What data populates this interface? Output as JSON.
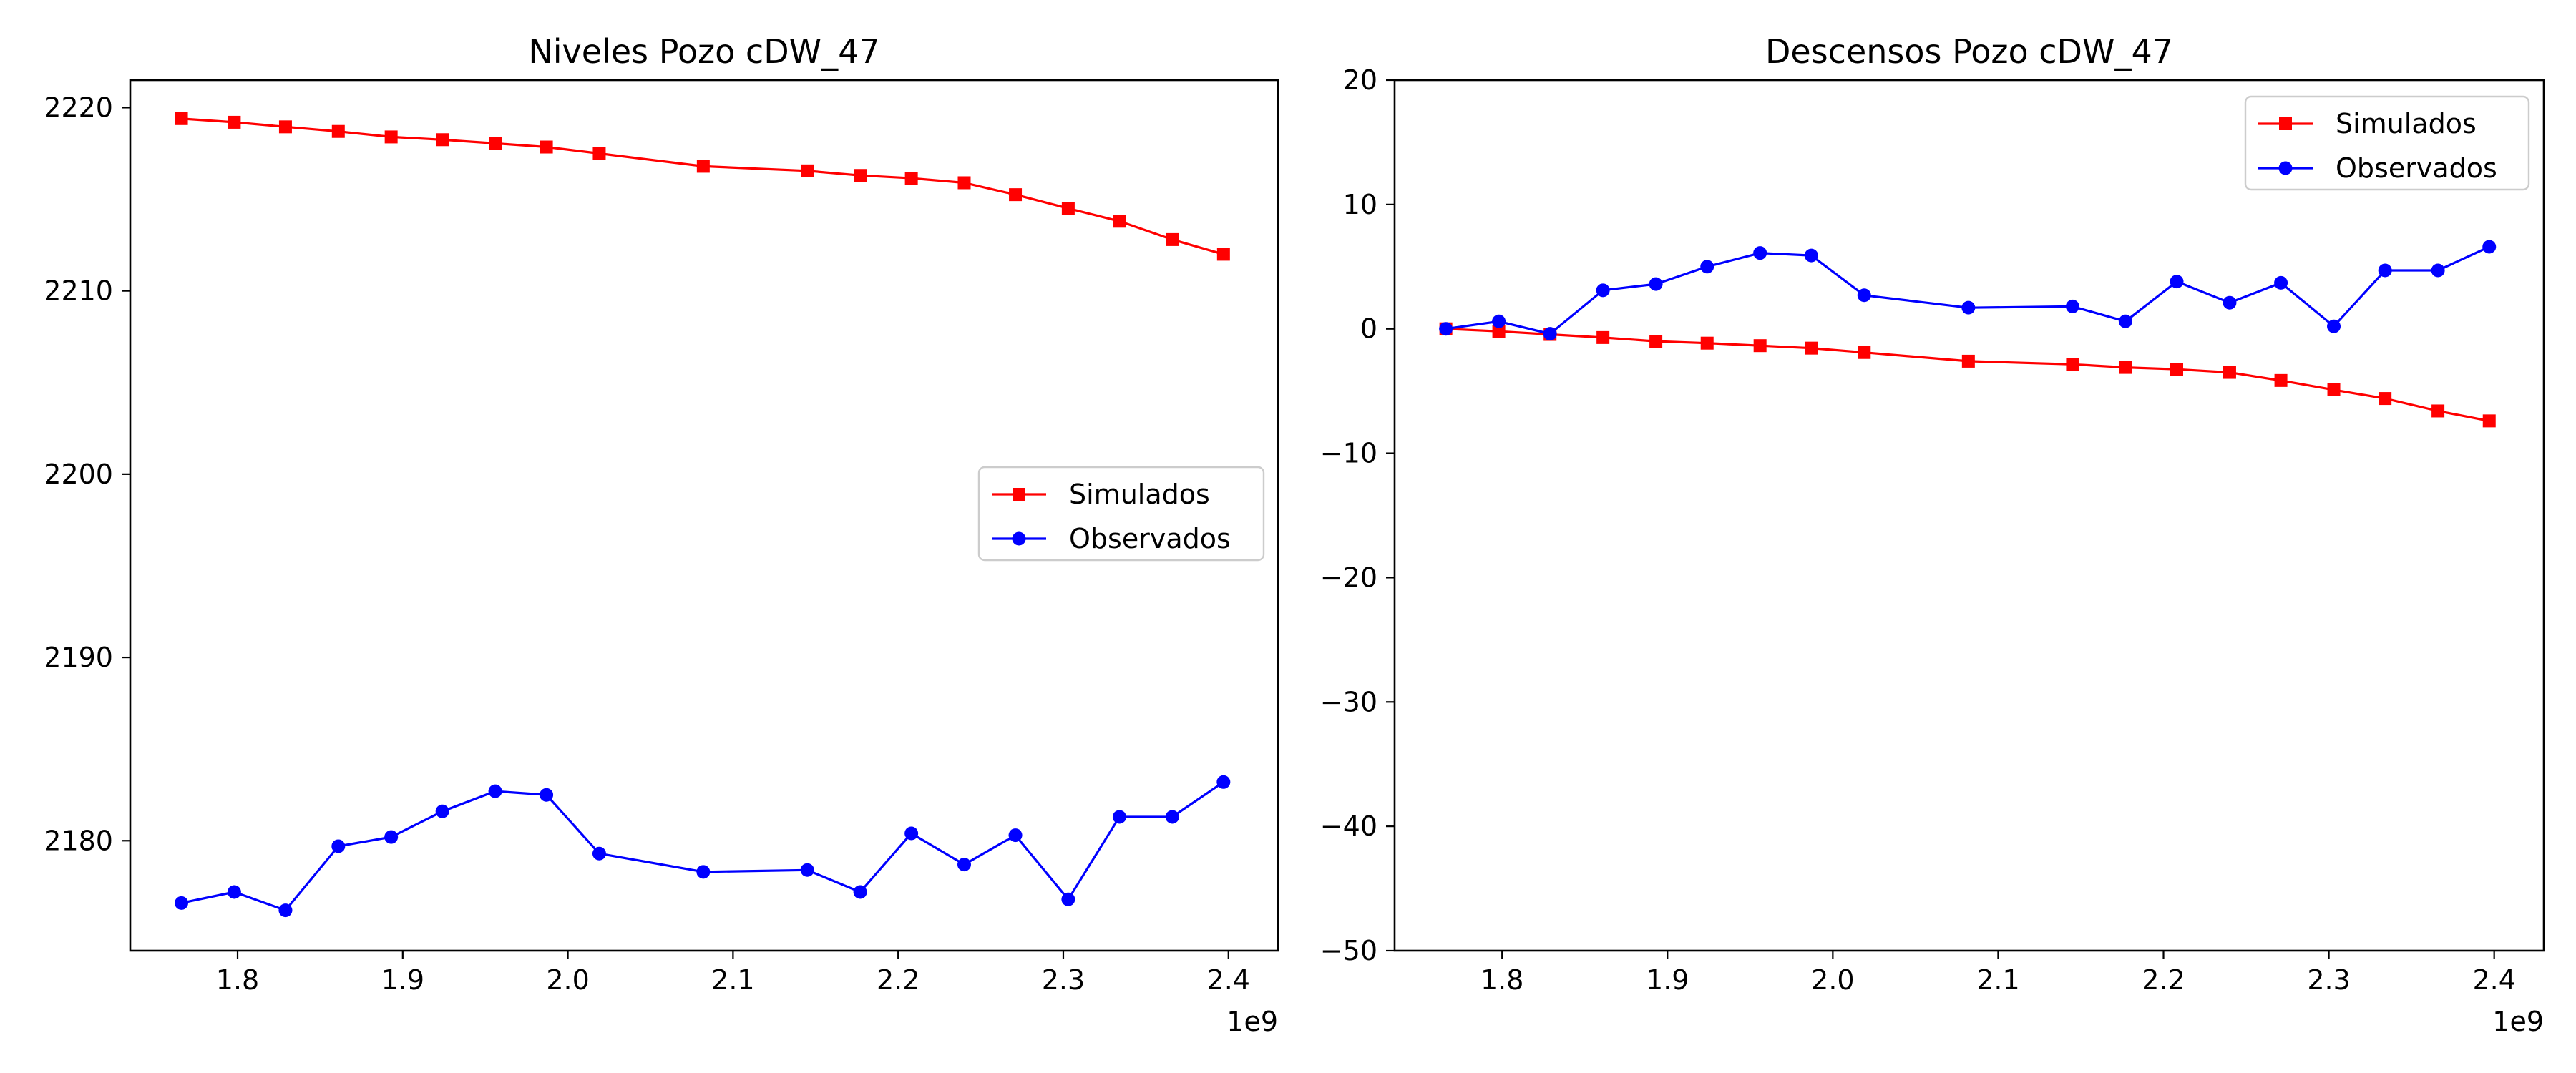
{
  "chart_data": [
    {
      "type": "line",
      "title": "Niveles Pozo cDW_47",
      "xlabel": "",
      "ylabel": "",
      "x_offset_label": "1e9",
      "xlim": [
        1.735,
        2.43
      ],
      "ylim": [
        2174,
        2221.5
      ],
      "xticks": [
        1.8,
        1.9,
        2.0,
        2.1,
        2.2,
        2.3,
        2.4
      ],
      "xtick_labels": [
        "1.8",
        "1.9",
        "2.0",
        "2.1",
        "2.2",
        "2.3",
        "2.4"
      ],
      "yticks": [
        2180,
        2190,
        2200,
        2210,
        2220
      ],
      "ytick_labels": [
        "2180",
        "2190",
        "2200",
        "2210",
        "2220"
      ],
      "legend_position": "center-right",
      "grid": false,
      "x": [
        1.766,
        1.798,
        1.829,
        1.861,
        1.893,
        1.924,
        1.956,
        1.987,
        2.019,
        2.082,
        2.145,
        2.177,
        2.208,
        2.24,
        2.271,
        2.303,
        2.334,
        2.366,
        2.397
      ],
      "series": [
        {
          "name": "Simulados",
          "color": "#ff0000",
          "marker": "square",
          "values": [
            2219.4,
            2219.2,
            2218.95,
            2218.7,
            2218.4,
            2218.25,
            2218.05,
            2217.85,
            2217.5,
            2216.8,
            2216.55,
            2216.3,
            2216.15,
            2215.9,
            2215.25,
            2214.5,
            2213.8,
            2212.8,
            2212.0
          ]
        },
        {
          "name": "Observados",
          "color": "#0000ff",
          "marker": "circle",
          "values": [
            2176.6,
            2177.2,
            2176.2,
            2179.7,
            2180.2,
            2181.6,
            2182.7,
            2182.5,
            2179.3,
            2178.3,
            2178.4,
            2177.2,
            2180.4,
            2178.7,
            2180.3,
            2176.8,
            2181.3,
            2181.3,
            2183.2
          ]
        }
      ]
    },
    {
      "type": "line",
      "title": "Descensos Pozo cDW_47",
      "xlabel": "",
      "ylabel": "",
      "x_offset_label": "1e9",
      "xlim": [
        1.735,
        2.43
      ],
      "ylim": [
        -50,
        20
      ],
      "xticks": [
        1.8,
        1.9,
        2.0,
        2.1,
        2.2,
        2.3,
        2.4
      ],
      "xtick_labels": [
        "1.8",
        "1.9",
        "2.0",
        "2.1",
        "2.2",
        "2.3",
        "2.4"
      ],
      "yticks": [
        -50,
        -40,
        -30,
        -20,
        -10,
        0,
        10,
        20
      ],
      "ytick_labels": [
        "−50",
        "−40",
        "−30",
        "−20",
        "−10",
        "0",
        "10",
        "20"
      ],
      "legend_position": "top-right",
      "grid": false,
      "x": [
        1.766,
        1.798,
        1.829,
        1.861,
        1.893,
        1.924,
        1.956,
        1.987,
        2.019,
        2.082,
        2.145,
        2.177,
        2.208,
        2.24,
        2.271,
        2.303,
        2.334,
        2.366,
        2.397
      ],
      "series": [
        {
          "name": "Simulados",
          "color": "#ff0000",
          "marker": "square",
          "values": [
            0.0,
            -0.2,
            -0.45,
            -0.7,
            -1.0,
            -1.15,
            -1.35,
            -1.55,
            -1.9,
            -2.6,
            -2.85,
            -3.1,
            -3.25,
            -3.5,
            -4.15,
            -4.9,
            -5.6,
            -6.6,
            -7.4
          ]
        },
        {
          "name": "Observados",
          "color": "#0000ff",
          "marker": "circle",
          "values": [
            0.0,
            0.6,
            -0.4,
            3.1,
            3.6,
            5.0,
            6.1,
            5.9,
            2.7,
            1.7,
            1.8,
            0.6,
            3.8,
            2.1,
            3.7,
            0.2,
            4.7,
            4.7,
            6.6
          ]
        }
      ]
    }
  ]
}
